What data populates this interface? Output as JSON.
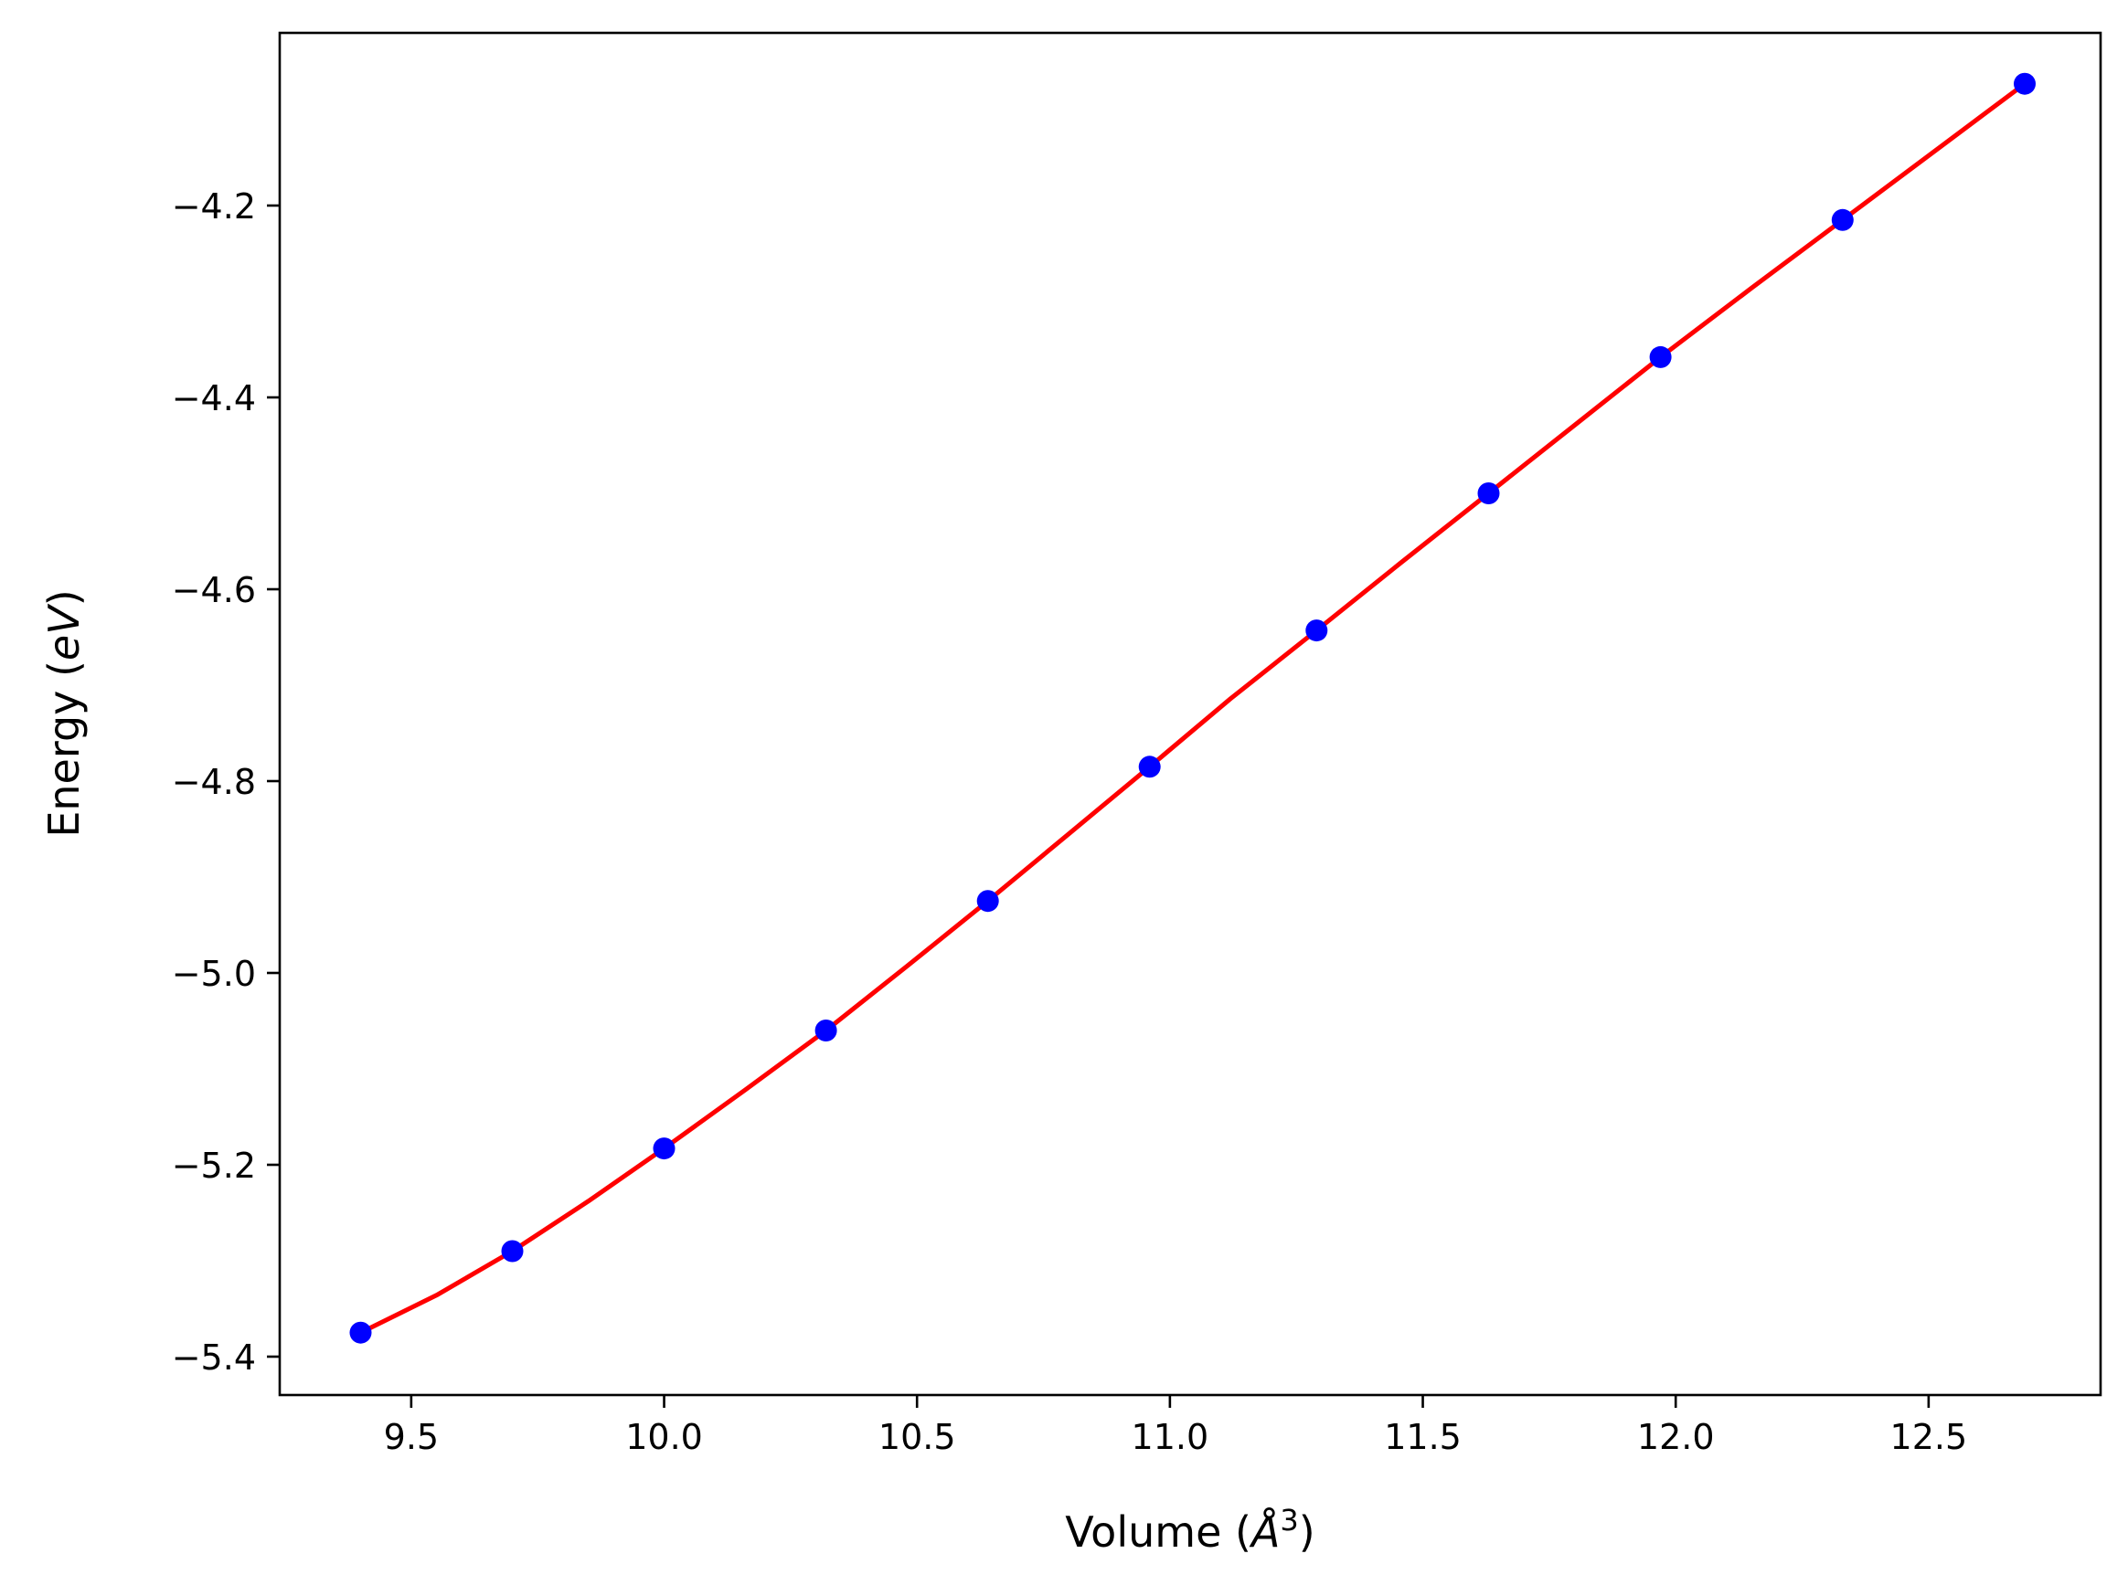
{
  "chart_data": {
    "type": "scatter",
    "title": "",
    "xlabel": "Volume (Å³)",
    "xlabel_parts": {
      "prefix": "Volume (",
      "symbol": "Å",
      "sup": "3",
      "suffix": ")"
    },
    "ylabel": "Energy (eV)",
    "ylabel_parts": {
      "prefix": "Energy (",
      "italic": "eV",
      "suffix": ")"
    },
    "xlim": [
      9.24,
      12.84
    ],
    "ylim": [
      -5.44,
      -4.02
    ],
    "xticks": [
      9.5,
      10.0,
      10.5,
      11.0,
      11.5,
      12.0,
      12.5
    ],
    "xtick_labels": [
      "9.5",
      "10.0",
      "10.5",
      "11.0",
      "11.5",
      "12.0",
      "12.5"
    ],
    "yticks": [
      -5.4,
      -5.2,
      -5.0,
      -4.8,
      -4.6,
      -4.4,
      -4.2
    ],
    "ytick_labels": [
      "−5.4",
      "−5.2",
      "−5.0",
      "−4.8",
      "−4.6",
      "−4.4",
      "−4.2"
    ],
    "grid": false,
    "legend": "none",
    "series": [
      {
        "kind": "points",
        "color": "#0000ff",
        "x": [
          9.4,
          9.7,
          10.0,
          10.32,
          10.64,
          10.96,
          11.29,
          11.63,
          11.97,
          12.33,
          12.69
        ],
        "y": [
          -5.375,
          -5.29,
          -5.183,
          -5.06,
          -4.925,
          -4.785,
          -4.643,
          -4.5,
          -4.358,
          -4.215,
          -4.073
        ]
      },
      {
        "kind": "fit-line",
        "color": "#ff0000",
        "x": [
          9.4,
          9.55,
          9.7,
          9.85,
          10.0,
          10.16,
          10.32,
          10.48,
          10.64,
          10.8,
          10.96,
          11.12,
          11.29,
          11.46,
          11.63,
          11.8,
          11.97,
          12.15,
          12.33,
          12.51,
          12.69
        ],
        "y": [
          -5.375,
          -5.336,
          -5.29,
          -5.238,
          -5.183,
          -5.122,
          -5.06,
          -4.993,
          -4.925,
          -4.855,
          -4.785,
          -4.714,
          -4.643,
          -4.571,
          -4.5,
          -4.429,
          -4.358,
          -4.286,
          -4.215,
          -4.144,
          -4.073
        ]
      }
    ]
  }
}
